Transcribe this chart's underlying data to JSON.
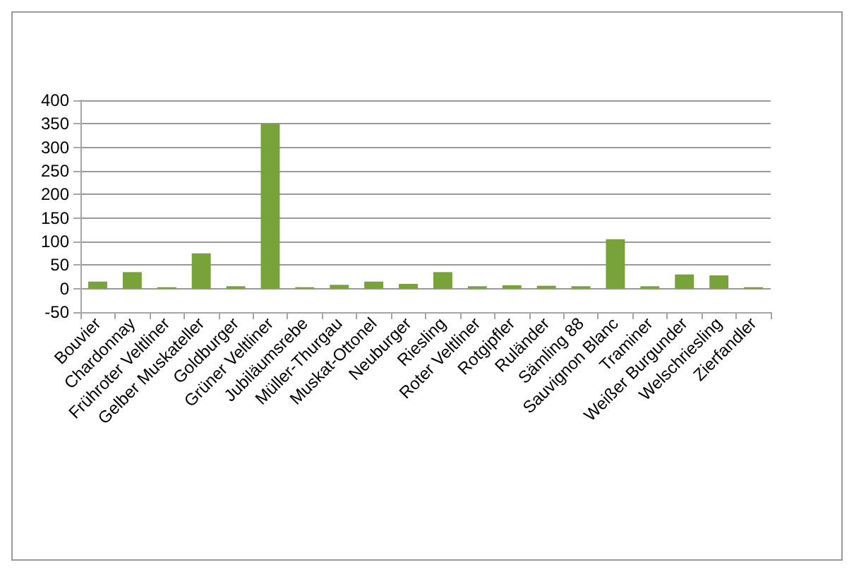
{
  "chart_data": {
    "type": "bar",
    "categories": [
      "Bouvier",
      "Chardonnay",
      "Frühroter Veltliner",
      "Gelber Muskateller",
      "Goldburger",
      "Grüner Veltliner",
      "Jubiläumsrebe",
      "Müller-Thurgau",
      "Muskat-Ottonel",
      "Neuburger",
      "Riesling",
      "Roter Veltliner",
      "Rotgipfler",
      "Ruländer",
      "Sämling 88",
      "Sauvignon Blanc",
      "Traminer",
      "Weißer Burgunder",
      "Welschriesling",
      "Zierfandler"
    ],
    "values": [
      15,
      35,
      3,
      75,
      5,
      350,
      3,
      8,
      15,
      10,
      35,
      5,
      7,
      6,
      5,
      105,
      5,
      30,
      28,
      3
    ],
    "color": "#77a33a",
    "ylim": [
      -50,
      400
    ],
    "yticks": [
      -50,
      0,
      50,
      100,
      150,
      200,
      250,
      300,
      350,
      400
    ],
    "grid": "y"
  }
}
